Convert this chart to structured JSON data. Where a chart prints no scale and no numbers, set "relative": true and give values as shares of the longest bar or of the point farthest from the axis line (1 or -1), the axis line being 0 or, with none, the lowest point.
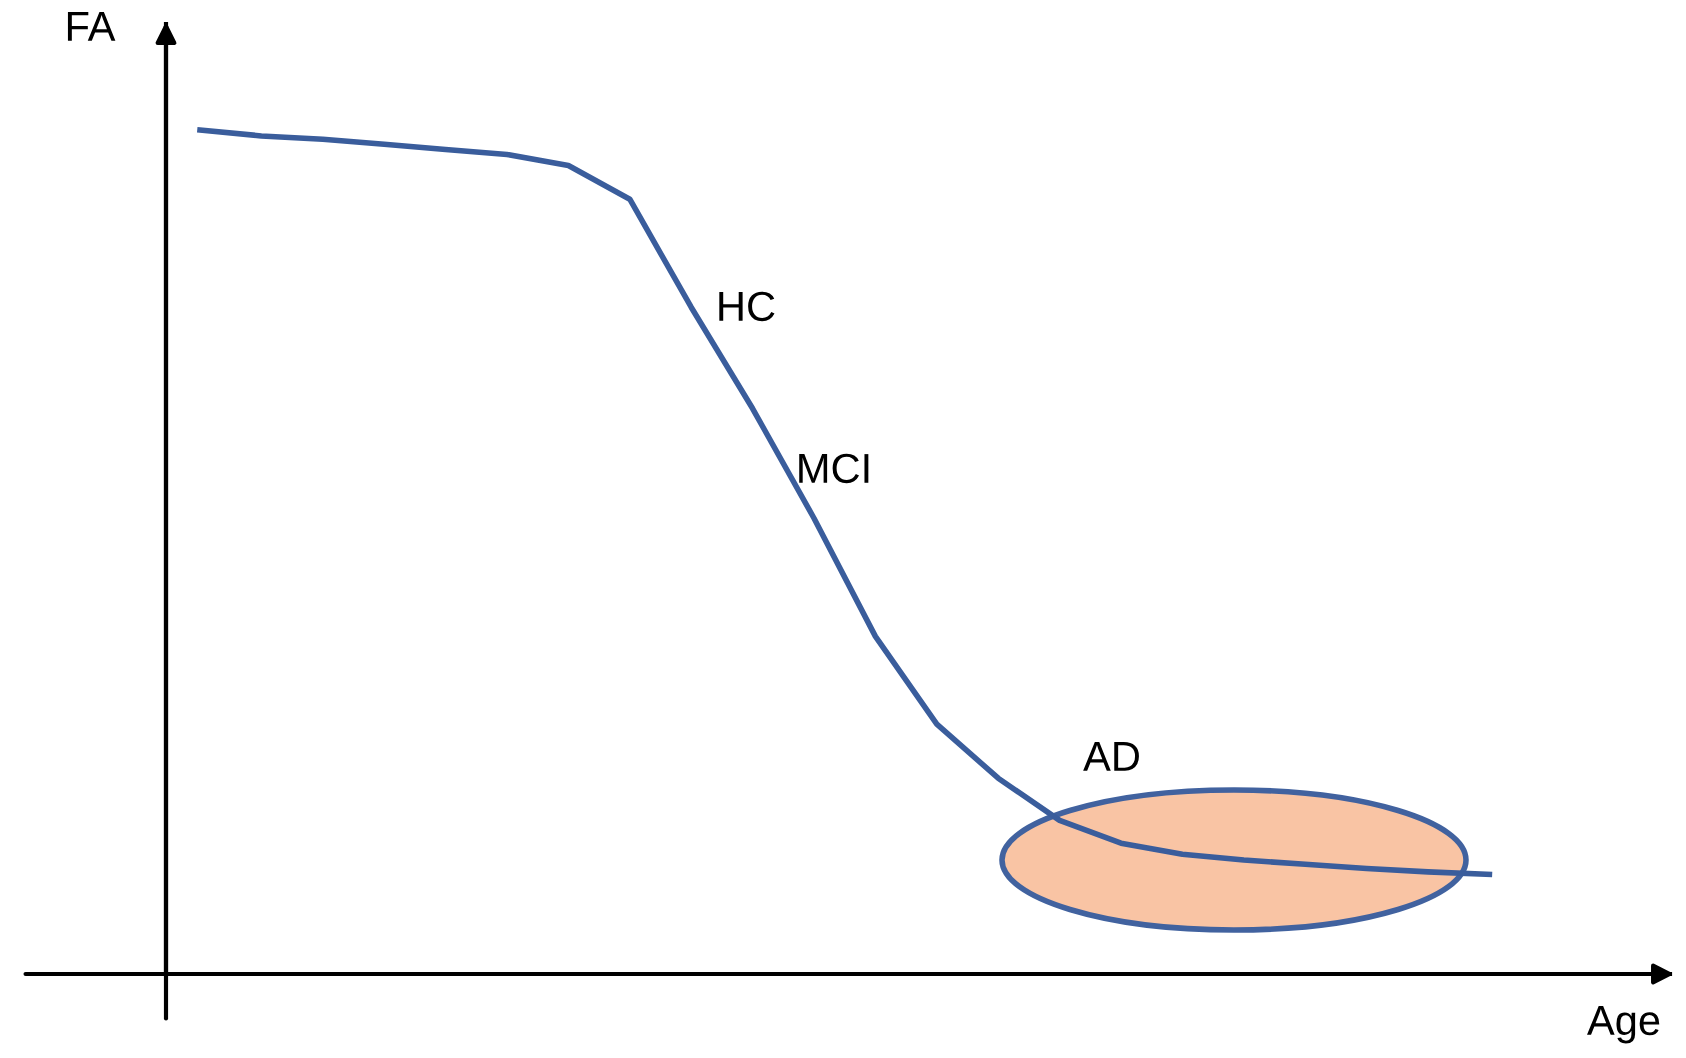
{
  "chart_data": {
    "type": "line",
    "relative": true,
    "xlabel": "Age",
    "ylabel": "FA",
    "categories": [
      null,
      null,
      null,
      null,
      null,
      null,
      null,
      null,
      null,
      null,
      null,
      null,
      null,
      null,
      null,
      null,
      null,
      null,
      null,
      null,
      null,
      null
    ],
    "series": [
      {
        "color": "#3a5d9c",
        "values": [
          1.0,
          0.993,
          0.989,
          0.983,
          0.977,
          0.971,
          0.958,
          0.918,
          0.79,
          0.67,
          0.54,
          0.4,
          0.296,
          0.232,
          0.182,
          0.155,
          0.142,
          0.135,
          0.13,
          0.125,
          0.121,
          0.118
        ]
      }
    ],
    "annotations": [
      "HC",
      "MCI",
      "AD"
    ],
    "legend": false,
    "marker": "none",
    "line_style": "solid"
  }
}
